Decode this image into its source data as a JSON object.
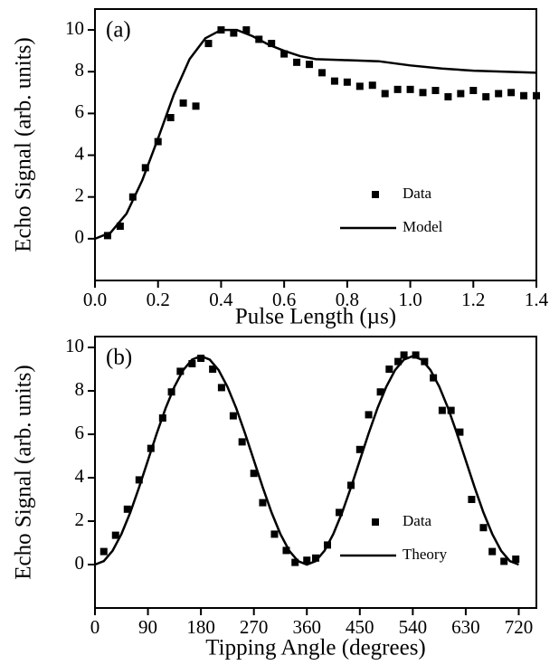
{
  "chart_data": [
    {
      "type": "scatter",
      "panel_label": "(a)",
      "ylabel": "Echo Signal (arb. units)",
      "xlabel": "Pulse Length  (µs)",
      "xlim": [
        0,
        1.4
      ],
      "ylim": [
        -2,
        11
      ],
      "xticks": [
        {
          "value": 0,
          "label": "0.0"
        },
        0.2,
        0.4,
        0.6,
        0.8,
        {
          "value": 1,
          "label": "1.0"
        },
        1.2,
        1.4
      ],
      "yticks": [
        0,
        2,
        4,
        6,
        8,
        10
      ],
      "legend": "lower right",
      "series": [
        {
          "name": "Data",
          "style": "markers",
          "color": "#000000",
          "x": [
            0.04,
            0.08,
            0.12,
            0.16,
            0.2,
            0.24,
            0.28,
            0.32,
            0.36,
            0.4,
            0.44,
            0.48,
            0.52,
            0.56,
            0.6,
            0.64,
            0.68,
            0.72,
            0.76,
            0.8,
            0.84,
            0.88,
            0.92,
            0.96,
            1.0,
            1.04,
            1.08,
            1.12,
            1.16,
            1.2,
            1.24,
            1.28,
            1.32,
            1.36,
            1.4
          ],
          "values": [
            0.15,
            0.6,
            2.0,
            3.4,
            4.65,
            5.8,
            6.5,
            6.35,
            9.35,
            10.0,
            9.85,
            10.0,
            9.55,
            9.35,
            8.85,
            8.45,
            8.35,
            7.95,
            7.55,
            7.5,
            7.3,
            7.35,
            6.95,
            7.15,
            7.15,
            7.0,
            7.1,
            6.8,
            6.95,
            7.1,
            6.8,
            6.95,
            7.0,
            6.85,
            6.85
          ]
        },
        {
          "name": "Model",
          "style": "line",
          "color": "#000000",
          "x": [
            0,
            0.05,
            0.1,
            0.15,
            0.2,
            0.25,
            0.3,
            0.35,
            0.4,
            0.45,
            0.5,
            0.55,
            0.6,
            0.65,
            0.7,
            0.8,
            0.9,
            1.0,
            1.1,
            1.2,
            1.3,
            1.4
          ],
          "values": [
            0,
            0.3,
            1.2,
            2.8,
            4.8,
            6.9,
            8.6,
            9.6,
            10.0,
            10.0,
            9.7,
            9.3,
            9.0,
            8.75,
            8.6,
            8.55,
            8.5,
            8.3,
            8.15,
            8.05,
            8.0,
            7.95
          ]
        }
      ]
    },
    {
      "type": "scatter",
      "panel_label": "(b)",
      "ylabel": "Echo Signal (arb. units)",
      "xlabel": "Tipping Angle (degrees)",
      "xlim": [
        0,
        750
      ],
      "ylim": [
        -2,
        10.5
      ],
      "xticks": [
        0,
        90,
        180,
        270,
        360,
        450,
        540,
        630,
        720
      ],
      "yticks": [
        0,
        2,
        4,
        6,
        8,
        10
      ],
      "legend": "lower right",
      "series": [
        {
          "name": "Data",
          "style": "markers",
          "color": "#000000",
          "x": [
            15,
            35,
            55,
            75,
            95,
            115,
            130,
            145,
            165,
            180,
            200,
            215,
            235,
            250,
            270,
            285,
            305,
            325,
            340,
            360,
            375,
            395,
            415,
            435,
            450,
            465,
            485,
            500,
            515,
            525,
            545,
            560,
            575,
            590,
            605,
            620,
            640,
            660,
            675,
            695,
            715
          ],
          "values": [
            0.6,
            1.35,
            2.55,
            3.9,
            5.35,
            6.75,
            7.95,
            8.9,
            9.25,
            9.5,
            9.0,
            8.15,
            6.85,
            5.65,
            4.2,
            2.85,
            1.4,
            0.65,
            0.1,
            0.2,
            0.3,
            0.9,
            2.4,
            3.65,
            5.3,
            6.9,
            7.95,
            9.0,
            9.35,
            9.65,
            9.65,
            9.35,
            8.6,
            7.1,
            7.1,
            6.1,
            3.0,
            1.7,
            0.6,
            0.15,
            0.25
          ]
        },
        {
          "name": "Theory",
          "style": "line",
          "color": "#000000",
          "x": [
            0,
            15,
            30,
            45,
            60,
            75,
            90,
            105,
            120,
            135,
            150,
            165,
            180,
            195,
            210,
            225,
            240,
            255,
            270,
            285,
            300,
            315,
            330,
            345,
            360,
            375,
            390,
            405,
            420,
            435,
            450,
            465,
            480,
            495,
            510,
            525,
            540,
            555,
            570,
            585,
            600,
            615,
            630,
            645,
            660,
            675,
            690,
            705,
            720
          ],
          "values": [
            0,
            0.16,
            0.64,
            1.41,
            2.4,
            3.56,
            4.8,
            6.04,
            7.2,
            8.19,
            8.96,
            9.44,
            9.6,
            9.44,
            8.96,
            8.19,
            7.2,
            6.04,
            4.8,
            3.56,
            2.4,
            1.41,
            0.64,
            0.16,
            0,
            0.16,
            0.64,
            1.41,
            2.4,
            3.56,
            4.8,
            6.04,
            7.2,
            8.19,
            8.96,
            9.44,
            9.6,
            9.44,
            8.96,
            8.19,
            7.2,
            6.04,
            4.8,
            3.56,
            2.4,
            1.41,
            0.64,
            0.16,
            0
          ]
        }
      ]
    }
  ]
}
